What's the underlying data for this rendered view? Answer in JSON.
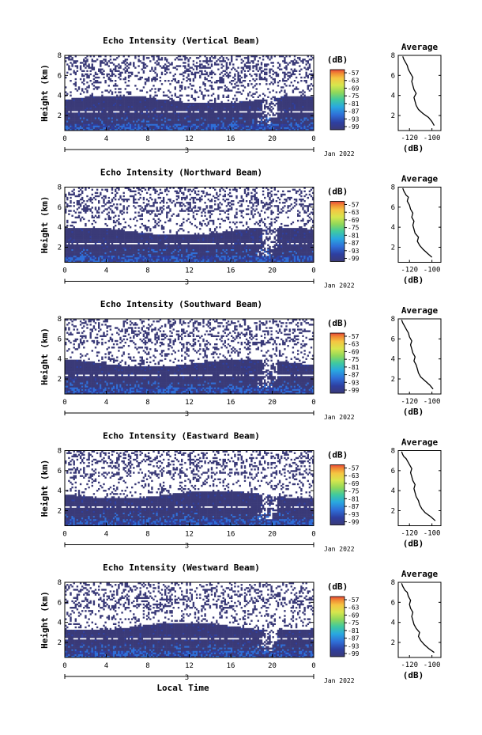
{
  "chart_data": [
    {
      "type": "heatmap",
      "title": "Echo Intensity (Vertical Beam)",
      "ylabel": "Height (km)",
      "x_ticks": [
        "0",
        "4",
        "8",
        "12",
        "16",
        "20",
        "0"
      ],
      "y_ticks": [
        "2",
        "4",
        "6",
        "8"
      ],
      "xlim": [
        0,
        24
      ],
      "ylim": [
        0.5,
        8
      ],
      "date_ticks": [
        "3",
        "Jan 2022"
      ],
      "colorbar": {
        "unit": "(dB)",
        "ticks": [
          "-57",
          "-63",
          "-69",
          "-75",
          "-81",
          "-87",
          "-93",
          "-99"
        ]
      },
      "profile": {
        "title": "Average",
        "xlabel": "(dB)",
        "x_ticks": [
          "-120",
          "-100"
        ],
        "y_ticks": [
          "2",
          "4",
          "6",
          "8"
        ],
        "xlim": [
          -130,
          -92
        ],
        "ylim": [
          0.5,
          8
        ],
        "x": [
          -98,
          -100,
          -103,
          -108,
          -112,
          -114,
          -115,
          -116,
          -114,
          -116,
          -117,
          -118,
          -117,
          -119,
          -121,
          -122,
          -123,
          -124,
          -125,
          -126
        ],
        "y": [
          1.0,
          1.4,
          1.8,
          2.2,
          2.6,
          3.0,
          3.4,
          3.8,
          4.2,
          4.6,
          5.0,
          5.4,
          5.8,
          6.2,
          6.6,
          7.0,
          7.2,
          7.4,
          7.6,
          7.9
        ]
      }
    },
    {
      "type": "heatmap",
      "title": "Echo Intensity (Northward Beam)",
      "ylabel": "Height (km)",
      "x_ticks": [
        "0",
        "4",
        "8",
        "12",
        "16",
        "20",
        "0"
      ],
      "y_ticks": [
        "2",
        "4",
        "6",
        "8"
      ],
      "xlim": [
        0,
        24
      ],
      "ylim": [
        0.5,
        8
      ],
      "date_ticks": [
        "3",
        "Jan 2022"
      ],
      "colorbar": {
        "unit": "(dB)",
        "ticks": [
          "-57",
          "-63",
          "-69",
          "-75",
          "-81",
          "-87",
          "-93",
          "-99"
        ]
      },
      "profile": {
        "title": "Average",
        "xlabel": "(dB)",
        "x_ticks": [
          "-120",
          "-100"
        ],
        "y_ticks": [
          "2",
          "4",
          "6",
          "8"
        ],
        "xlim": [
          -130,
          -92
        ],
        "ylim": [
          0.5,
          8
        ],
        "x": [
          -100,
          -104,
          -108,
          -111,
          -113,
          -112,
          -115,
          -116,
          -117,
          -116,
          -118,
          -117,
          -119,
          -120,
          -122,
          -121,
          -123,
          -124,
          -125,
          -126
        ],
        "y": [
          1.0,
          1.4,
          1.8,
          2.2,
          2.6,
          3.0,
          3.4,
          3.8,
          4.2,
          4.6,
          5.0,
          5.4,
          5.8,
          6.2,
          6.6,
          7.0,
          7.2,
          7.4,
          7.6,
          7.9
        ]
      }
    },
    {
      "type": "heatmap",
      "title": "Echo Intensity (Southward Beam)",
      "ylabel": "Height (km)",
      "x_ticks": [
        "0",
        "4",
        "8",
        "12",
        "16",
        "20",
        "0"
      ],
      "y_ticks": [
        "2",
        "4",
        "6",
        "8"
      ],
      "xlim": [
        0,
        24
      ],
      "ylim": [
        0.5,
        8
      ],
      "date_ticks": [
        "3",
        "Jan 2022"
      ],
      "colorbar": {
        "unit": "(dB)",
        "ticks": [
          "-57",
          "-63",
          "-69",
          "-75",
          "-81",
          "-87",
          "-93",
          "-99"
        ]
      },
      "profile": {
        "title": "Average",
        "xlabel": "(dB)",
        "x_ticks": [
          "-120",
          "-100"
        ],
        "y_ticks": [
          "2",
          "4",
          "6",
          "8"
        ],
        "xlim": [
          -130,
          -92
        ],
        "ylim": [
          0.5,
          8
        ],
        "x": [
          -99,
          -102,
          -106,
          -110,
          -112,
          -113,
          -114,
          -116,
          -115,
          -117,
          -118,
          -119,
          -118,
          -120,
          -121,
          -123,
          -124,
          -125,
          -126,
          -127
        ],
        "y": [
          1.0,
          1.4,
          1.8,
          2.2,
          2.6,
          3.0,
          3.4,
          3.8,
          4.2,
          4.6,
          5.0,
          5.4,
          5.8,
          6.2,
          6.6,
          7.0,
          7.2,
          7.4,
          7.6,
          7.9
        ]
      }
    },
    {
      "type": "heatmap",
      "title": "Echo Intensity (Eastward Beam)",
      "ylabel": "Height (km)",
      "x_ticks": [
        "0",
        "4",
        "8",
        "12",
        "16",
        "20",
        "0"
      ],
      "y_ticks": [
        "2",
        "4",
        "6",
        "8"
      ],
      "xlim": [
        0,
        24
      ],
      "ylim": [
        0.5,
        8
      ],
      "date_ticks": [
        "3",
        "Jan 2022"
      ],
      "colorbar": {
        "unit": "(dB)",
        "ticks": [
          "-57",
          "-63",
          "-69",
          "-75",
          "-81",
          "-87",
          "-93",
          "-99"
        ]
      },
      "profile": {
        "title": "Average",
        "xlabel": "(dB)",
        "x_ticks": [
          "-120",
          "-100"
        ],
        "y_ticks": [
          "2",
          "4",
          "6",
          "8"
        ],
        "xlim": [
          -130,
          -92
        ],
        "ylim": [
          0.5,
          8
        ],
        "x": [
          -97,
          -101,
          -106,
          -109,
          -111,
          -112,
          -114,
          -115,
          -116,
          -115,
          -117,
          -118,
          -119,
          -118,
          -120,
          -122,
          -123,
          -125,
          -126,
          -127
        ],
        "y": [
          1.0,
          1.4,
          1.8,
          2.2,
          2.6,
          3.0,
          3.4,
          3.8,
          4.2,
          4.6,
          5.0,
          5.4,
          5.8,
          6.2,
          6.6,
          7.0,
          7.2,
          7.4,
          7.6,
          7.9
        ]
      }
    },
    {
      "type": "heatmap",
      "title": "Echo Intensity (Westward Beam)",
      "ylabel": "Height (km)",
      "xlabel": "Local Time",
      "x_ticks": [
        "0",
        "4",
        "8",
        "12",
        "16",
        "20",
        "0"
      ],
      "y_ticks": [
        "2",
        "4",
        "6",
        "8"
      ],
      "xlim": [
        0,
        24
      ],
      "ylim": [
        0.5,
        8
      ],
      "date_ticks": [
        "3",
        "Jan 2022"
      ],
      "colorbar": {
        "unit": "(dB)",
        "ticks": [
          "-57",
          "-63",
          "-69",
          "-75",
          "-81",
          "-87",
          "-93",
          "-99"
        ]
      },
      "profile": {
        "title": "Average",
        "xlabel": "(dB)",
        "x_ticks": [
          "-120",
          "-100"
        ],
        "y_ticks": [
          "2",
          "4",
          "6",
          "8"
        ],
        "xlim": [
          -130,
          -92
        ],
        "ylim": [
          0.5,
          8
        ],
        "x": [
          -98,
          -103,
          -107,
          -110,
          -112,
          -111,
          -114,
          -116,
          -117,
          -118,
          -117,
          -119,
          -120,
          -119,
          -121,
          -122,
          -124,
          -125,
          -126,
          -127
        ],
        "y": [
          1.0,
          1.4,
          1.8,
          2.2,
          2.6,
          3.0,
          3.4,
          3.8,
          4.2,
          4.6,
          5.0,
          5.4,
          5.8,
          6.2,
          6.6,
          7.0,
          7.2,
          7.4,
          7.6,
          7.9
        ]
      }
    }
  ],
  "colors": {
    "scale": [
      "#e8483a",
      "#f08a33",
      "#f5c542",
      "#d7e64d",
      "#8fd85a",
      "#3fc9a0",
      "#29a8e0",
      "#2f6fd8",
      "#2e3fa0",
      "#3a3a78"
    ],
    "background": "#ffffff",
    "axis": "#000000"
  }
}
